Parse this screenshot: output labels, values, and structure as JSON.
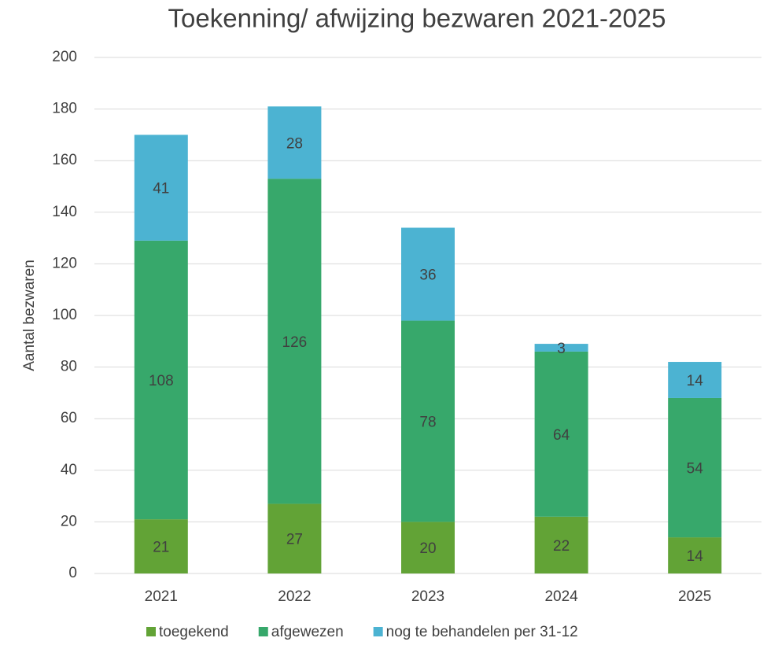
{
  "chart_data": {
    "type": "stacked_bar",
    "title": "Toekenning/ afwijzing bezwaren 2021-2025",
    "ylabel": "Aantal bezwaren",
    "categories": [
      "2021",
      "2022",
      "2023",
      "2024",
      "2025"
    ],
    "series": [
      {
        "name": "toegekend",
        "color": "#62a336",
        "values": [
          21,
          27,
          20,
          22,
          14
        ]
      },
      {
        "name": "afgewezen",
        "color": "#37a86b",
        "values": [
          108,
          126,
          78,
          64,
          54
        ]
      },
      {
        "name": "nog te behandelen per 31-12",
        "color": "#4cb3d2",
        "values": [
          41,
          28,
          36,
          3,
          14
        ]
      }
    ],
    "ylim": [
      0,
      200
    ],
    "yticks": [
      0,
      20,
      40,
      60,
      80,
      100,
      120,
      140,
      160,
      180,
      200
    ],
    "grid": true,
    "legend": "bottom"
  }
}
